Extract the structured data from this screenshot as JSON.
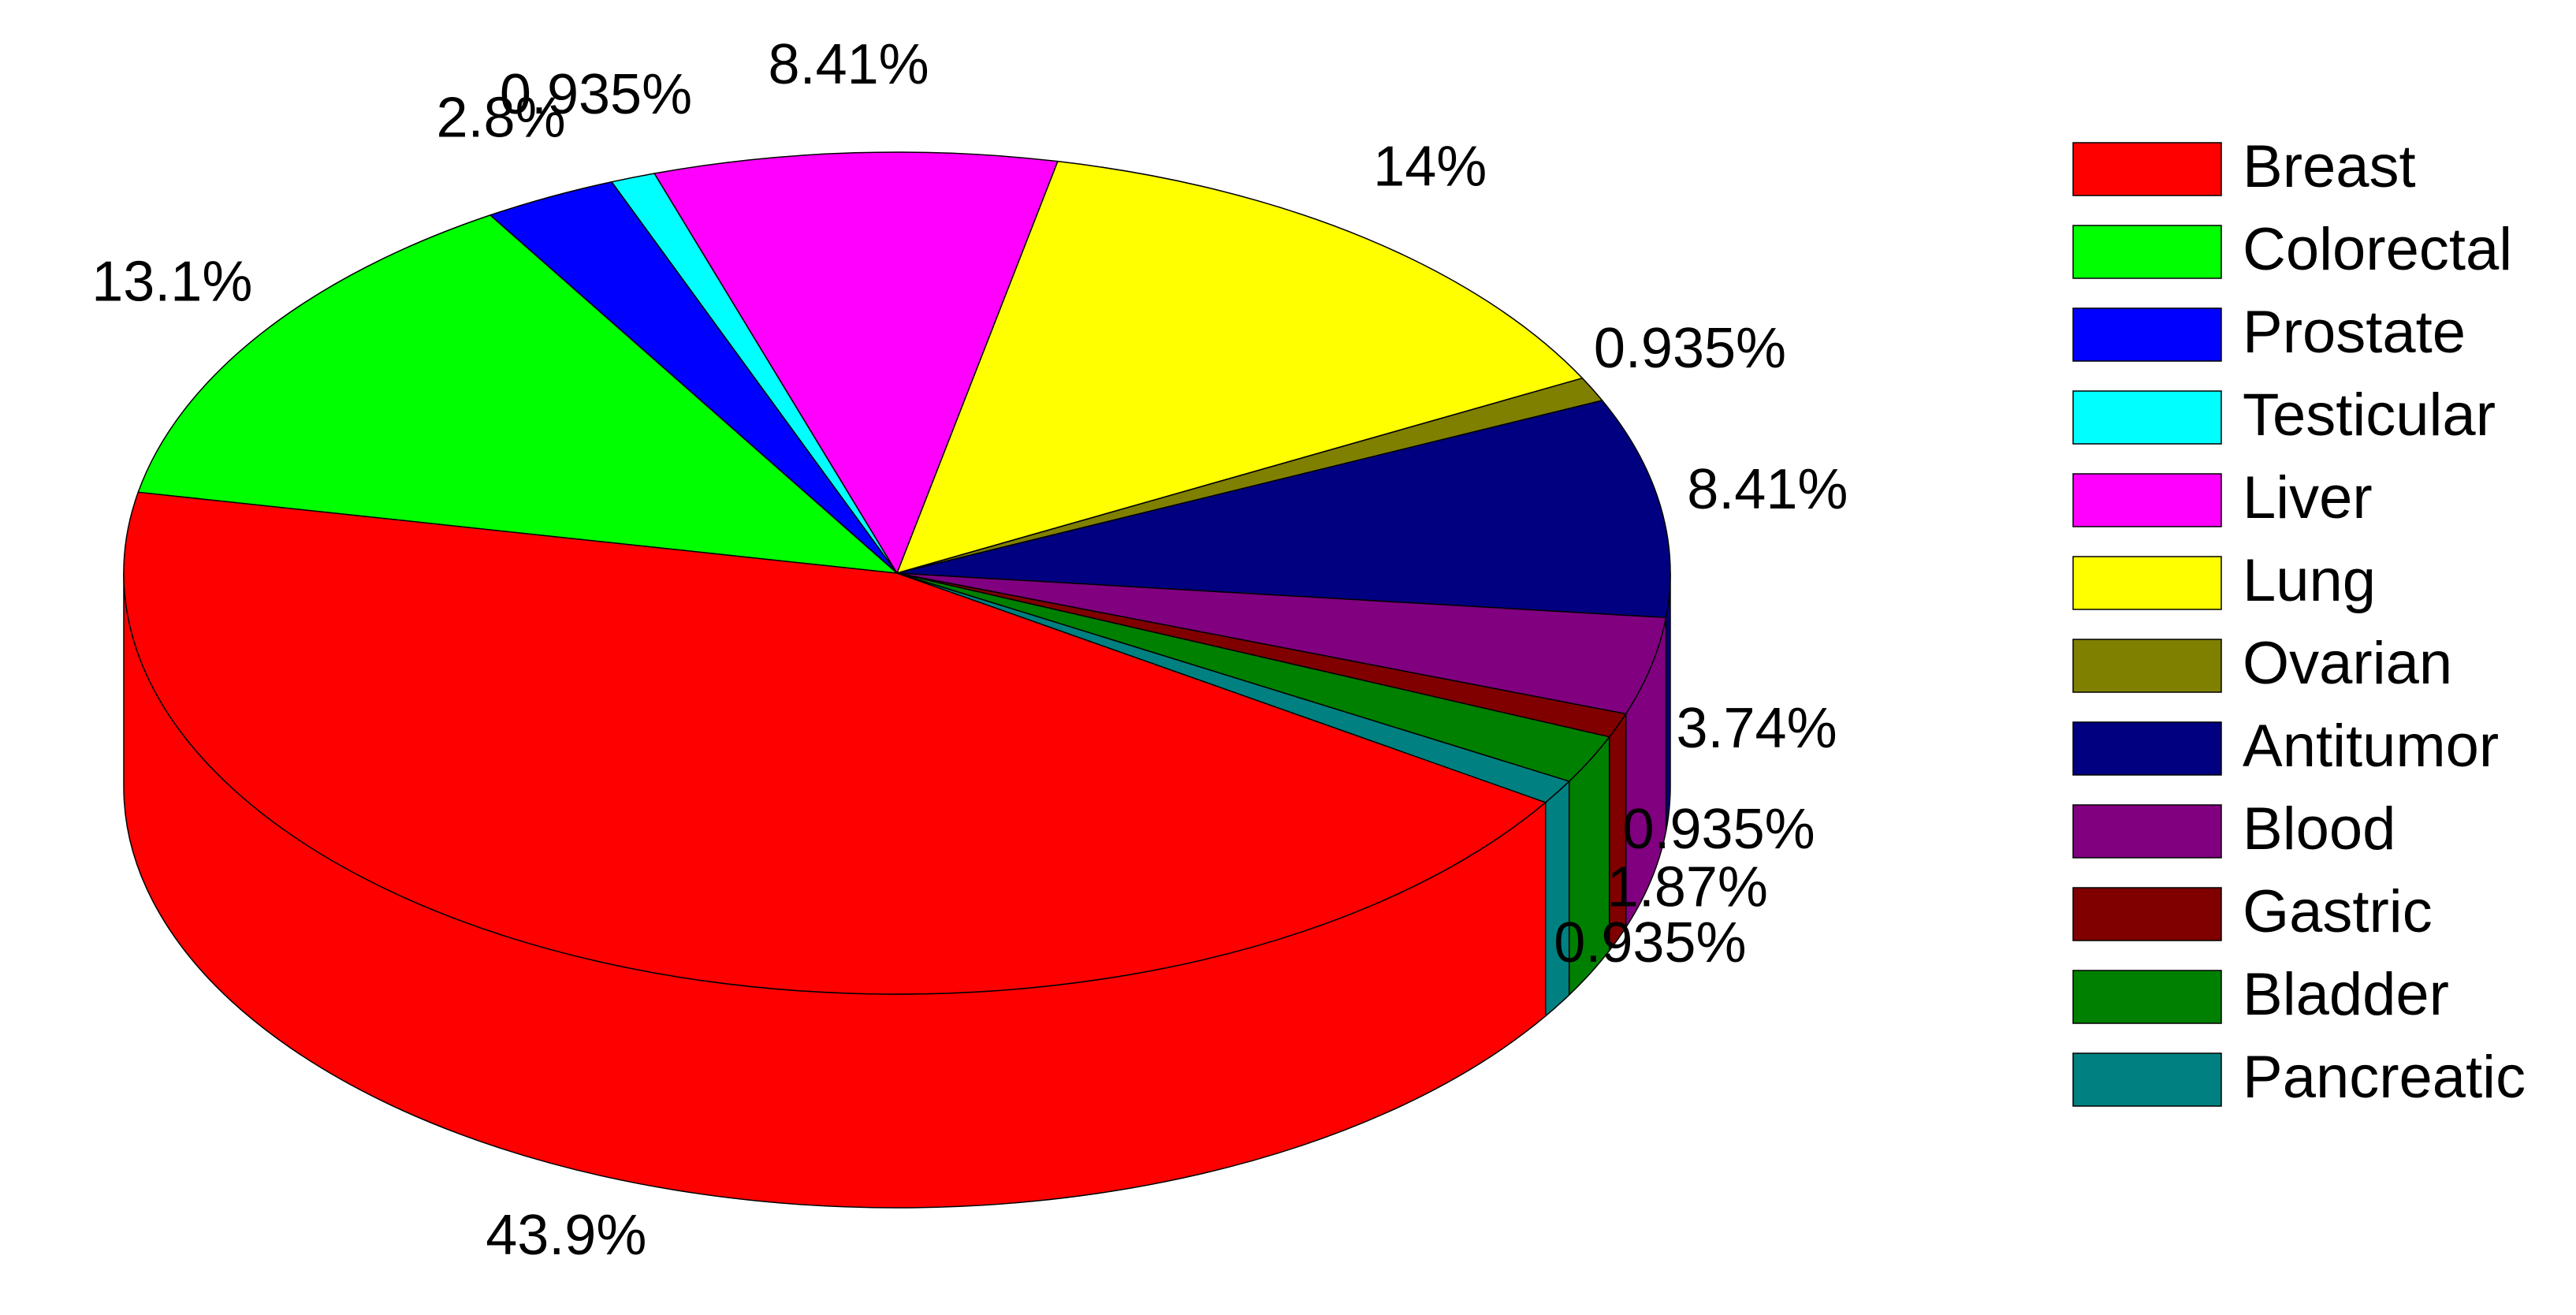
{
  "chart_data": {
    "type": "pie",
    "categories": [
      "Breast",
      "Colorectal",
      "Prostate",
      "Testicular",
      "Liver",
      "Lung",
      "Ovarian",
      "Antitumor",
      "Blood",
      "Gastric",
      "Bladder",
      "Pancreatic"
    ],
    "values": [
      43.9,
      13.1,
      2.8,
      0.935,
      8.41,
      14,
      0.935,
      8.41,
      3.74,
      0.935,
      1.87,
      0.935
    ],
    "value_labels": [
      "43.9%",
      "13.1%",
      "2.8%",
      "0.935%",
      "8.41%",
      "14%",
      "0.935%",
      "8.41%",
      "3.74%",
      "0.935%",
      "1.87%",
      "0.935%"
    ],
    "colors": [
      "#ff0000",
      "#00ff00",
      "#0000ff",
      "#00ffff",
      "#ff00ff",
      "#ffff00",
      "#808000",
      "#000080",
      "#800080",
      "#800000",
      "#008000",
      "#008080"
    ],
    "legend": "right"
  }
}
